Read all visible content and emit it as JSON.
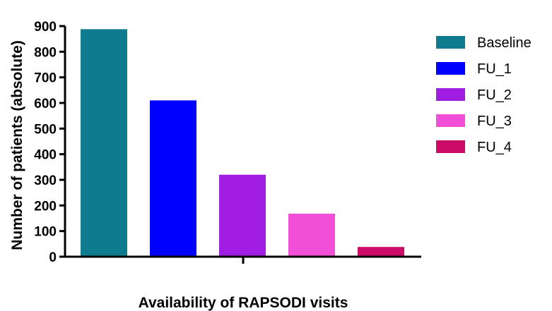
{
  "chart_data": {
    "type": "bar",
    "categories": [
      "Baseline",
      "FU_1",
      "FU_2",
      "FU_3",
      "FU_4"
    ],
    "values": [
      888,
      610,
      320,
      168,
      38
    ],
    "colors": [
      "#0e7b8f",
      "#0000ff",
      "#a01ee2",
      "#f24fd9",
      "#cc0b67"
    ],
    "xlabel": "Availability of RAPSODI visits",
    "ylabel": "Number of patients (absolute)",
    "ylim": [
      0,
      900
    ],
    "yticks": [
      0,
      100,
      200,
      300,
      400,
      500,
      600,
      700,
      800,
      900
    ],
    "legend_position": "right",
    "grid": false
  }
}
